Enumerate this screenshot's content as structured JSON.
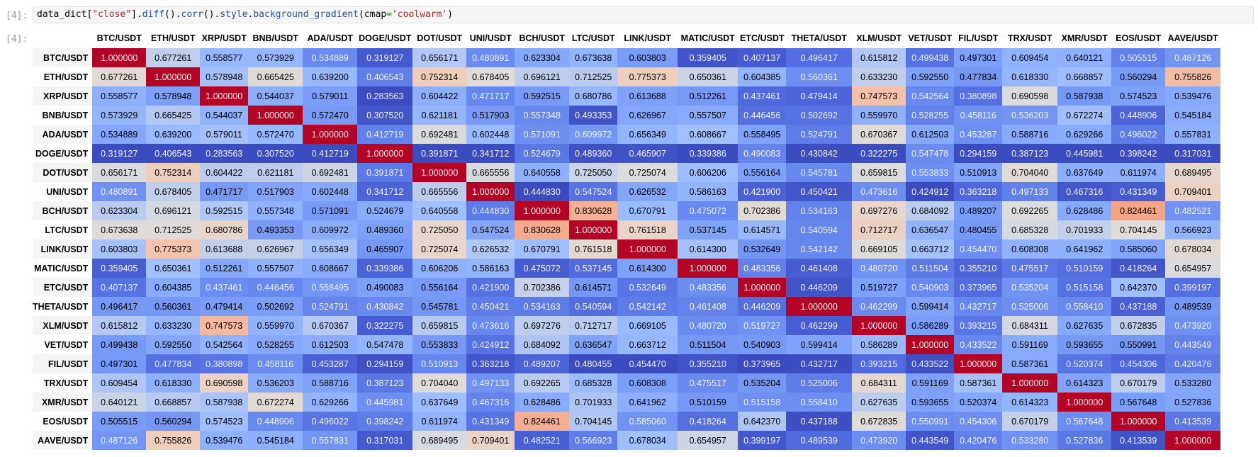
{
  "cell": {
    "in_prompt": "[4]:",
    "out_prompt": "[4]:",
    "code": {
      "t1": "data_dict[",
      "t2": "\"close\"",
      "t3": "].",
      "t4": "diff",
      "t5": "().",
      "t6": "corr",
      "t7": "().",
      "t8": "style",
      "t9": ".",
      "t10": "background_gradient",
      "t11": "(cmap",
      "t12": "=",
      "t13": "'coolwarm'",
      "t14": ")"
    }
  },
  "colormap": "coolwarm",
  "colors": {
    "low": "#3b4cc0",
    "mid": "#dddddd",
    "high": "#b40426"
  },
  "columns": [
    "BTC/USDT",
    "ETH/USDT",
    "XRP/USDT",
    "BNB/USDT",
    "ADA/USDT",
    "DOGE/USDT",
    "DOT/USDT",
    "UNI/USDT",
    "BCH/USDT",
    "LTC/USDT",
    "LINK/USDT",
    "MATIC/USDT",
    "ETC/USDT",
    "THETA/USDT",
    "XLM/USDT",
    "VET/USDT",
    "FIL/USDT",
    "TRX/USDT",
    "XMR/USDT",
    "EOS/USDT",
    "AAVE/USDT"
  ],
  "rows": [
    {
      "label": "BTC/USDT",
      "values": [
        "1.000000",
        "0.677261",
        "0.558577",
        "0.573929",
        "0.534889",
        "0.319127",
        "0.656171",
        "0.480891",
        "0.623304",
        "0.673638",
        "0.603803",
        "0.359405",
        "0.407137",
        "0.496417",
        "0.615812",
        "0.499438",
        "0.497301",
        "0.609454",
        "0.640121",
        "0.505515",
        "0.487126"
      ]
    },
    {
      "label": "ETH/USDT",
      "values": [
        "0.677261",
        "1.000000",
        "0.578948",
        "0.665425",
        "0.639200",
        "0.406543",
        "0.752314",
        "0.678405",
        "0.696121",
        "0.712525",
        "0.775373",
        "0.650361",
        "0.604385",
        "0.560361",
        "0.633230",
        "0.592550",
        "0.477834",
        "0.618330",
        "0.668857",
        "0.560294",
        "0.755826"
      ]
    },
    {
      "label": "XRP/USDT",
      "values": [
        "0.558577",
        "0.578948",
        "1.000000",
        "0.544037",
        "0.579011",
        "0.283563",
        "0.604422",
        "0.471717",
        "0.592515",
        "0.680786",
        "0.613688",
        "0.512261",
        "0.437461",
        "0.479414",
        "0.747573",
        "0.542564",
        "0.380898",
        "0.690598",
        "0.587938",
        "0.574523",
        "0.539476"
      ]
    },
    {
      "label": "BNB/USDT",
      "values": [
        "0.573929",
        "0.665425",
        "0.544037",
        "1.000000",
        "0.572470",
        "0.307520",
        "0.621181",
        "0.517903",
        "0.557348",
        "0.493353",
        "0.626967",
        "0.557507",
        "0.446456",
        "0.502692",
        "0.559970",
        "0.528255",
        "0.458116",
        "0.536203",
        "0.672274",
        "0.448906",
        "0.545184"
      ]
    },
    {
      "label": "ADA/USDT",
      "values": [
        "0.534889",
        "0.639200",
        "0.579011",
        "0.572470",
        "1.000000",
        "0.412719",
        "0.692481",
        "0.602448",
        "0.571091",
        "0.609972",
        "0.656349",
        "0.608667",
        "0.558495",
        "0.524791",
        "0.670367",
        "0.612503",
        "0.453287",
        "0.588716",
        "0.629266",
        "0.496022",
        "0.557831"
      ]
    },
    {
      "label": "DOGE/USDT",
      "values": [
        "0.319127",
        "0.406543",
        "0.283563",
        "0.307520",
        "0.412719",
        "1.000000",
        "0.391871",
        "0.341712",
        "0.524679",
        "0.489360",
        "0.465907",
        "0.339386",
        "0.490083",
        "0.430842",
        "0.322275",
        "0.547478",
        "0.294159",
        "0.387123",
        "0.445981",
        "0.398242",
        "0.317031"
      ]
    },
    {
      "label": "DOT/USDT",
      "values": [
        "0.656171",
        "0.752314",
        "0.604422",
        "0.621181",
        "0.692481",
        "0.391871",
        "1.000000",
        "0.665556",
        "0.640558",
        "0.725050",
        "0.725074",
        "0.606206",
        "0.556164",
        "0.545781",
        "0.659815",
        "0.553833",
        "0.510913",
        "0.704040",
        "0.637649",
        "0.611974",
        "0.689495"
      ]
    },
    {
      "label": "UNI/USDT",
      "values": [
        "0.480891",
        "0.678405",
        "0.471717",
        "0.517903",
        "0.602448",
        "0.341712",
        "0.665556",
        "1.000000",
        "0.444830",
        "0.547524",
        "0.626532",
        "0.586163",
        "0.421900",
        "0.450421",
        "0.473616",
        "0.424912",
        "0.363218",
        "0.497133",
        "0.467316",
        "0.431349",
        "0.709401"
      ]
    },
    {
      "label": "BCH/USDT",
      "values": [
        "0.623304",
        "0.696121",
        "0.592515",
        "0.557348",
        "0.571091",
        "0.524679",
        "0.640558",
        "0.444830",
        "1.000000",
        "0.830628",
        "0.670791",
        "0.475072",
        "0.702386",
        "0.534163",
        "0.697276",
        "0.684092",
        "0.489207",
        "0.692265",
        "0.628486",
        "0.824461",
        "0.482521"
      ]
    },
    {
      "label": "LTC/USDT",
      "values": [
        "0.673638",
        "0.712525",
        "0.680786",
        "0.493353",
        "0.609972",
        "0.489360",
        "0.725050",
        "0.547524",
        "0.830628",
        "1.000000",
        "0.761518",
        "0.537145",
        "0.614571",
        "0.540594",
        "0.712717",
        "0.636547",
        "0.480455",
        "0.685328",
        "0.701933",
        "0.704145",
        "0.566923"
      ]
    },
    {
      "label": "LINK/USDT",
      "values": [
        "0.603803",
        "0.775373",
        "0.613688",
        "0.626967",
        "0.656349",
        "0.465907",
        "0.725074",
        "0.626532",
        "0.670791",
        "0.761518",
        "1.000000",
        "0.614300",
        "0.532649",
        "0.542142",
        "0.669105",
        "0.663712",
        "0.454470",
        "0.608308",
        "0.641962",
        "0.585060",
        "0.678034"
      ]
    },
    {
      "label": "MATIC/USDT",
      "values": [
        "0.359405",
        "0.650361",
        "0.512261",
        "0.557507",
        "0.608667",
        "0.339386",
        "0.606206",
        "0.586163",
        "0.475072",
        "0.537145",
        "0.614300",
        "1.000000",
        "0.483356",
        "0.461408",
        "0.480720",
        "0.511504",
        "0.355210",
        "0.475517",
        "0.510159",
        "0.418264",
        "0.654957"
      ]
    },
    {
      "label": "ETC/USDT",
      "values": [
        "0.407137",
        "0.604385",
        "0.437461",
        "0.446456",
        "0.558495",
        "0.490083",
        "0.556164",
        "0.421900",
        "0.702386",
        "0.614571",
        "0.532649",
        "0.483356",
        "1.000000",
        "0.446209",
        "0.519727",
        "0.540903",
        "0.373965",
        "0.535204",
        "0.515158",
        "0.642370",
        "0.399197"
      ]
    },
    {
      "label": "THETA/USDT",
      "values": [
        "0.496417",
        "0.560361",
        "0.479414",
        "0.502692",
        "0.524791",
        "0.430842",
        "0.545781",
        "0.450421",
        "0.534163",
        "0.540594",
        "0.542142",
        "0.461408",
        "0.446209",
        "1.000000",
        "0.462299",
        "0.599414",
        "0.432717",
        "0.525006",
        "0.558410",
        "0.437188",
        "0.489539"
      ]
    },
    {
      "label": "XLM/USDT",
      "values": [
        "0.615812",
        "0.633230",
        "0.747573",
        "0.559970",
        "0.670367",
        "0.322275",
        "0.659815",
        "0.473616",
        "0.697276",
        "0.712717",
        "0.669105",
        "0.480720",
        "0.519727",
        "0.462299",
        "1.000000",
        "0.586289",
        "0.393215",
        "0.684311",
        "0.627635",
        "0.672835",
        "0.473920"
      ]
    },
    {
      "label": "VET/USDT",
      "values": [
        "0.499438",
        "0.592550",
        "0.542564",
        "0.528255",
        "0.612503",
        "0.547478",
        "0.553833",
        "0.424912",
        "0.684092",
        "0.636547",
        "0.663712",
        "0.511504",
        "0.540903",
        "0.599414",
        "0.586289",
        "1.000000",
        "0.433522",
        "0.591169",
        "0.593655",
        "0.550991",
        "0.443549"
      ]
    },
    {
      "label": "FIL/USDT",
      "values": [
        "0.497301",
        "0.477834",
        "0.380898",
        "0.458116",
        "0.453287",
        "0.294159",
        "0.510913",
        "0.363218",
        "0.489207",
        "0.480455",
        "0.454470",
        "0.355210",
        "0.373965",
        "0.432717",
        "0.393215",
        "0.433522",
        "1.000000",
        "0.587361",
        "0.520374",
        "0.454306",
        "0.420476"
      ]
    },
    {
      "label": "TRX/USDT",
      "values": [
        "0.609454",
        "0.618330",
        "0.690598",
        "0.536203",
        "0.588716",
        "0.387123",
        "0.704040",
        "0.497133",
        "0.692265",
        "0.685328",
        "0.608308",
        "0.475517",
        "0.535204",
        "0.525006",
        "0.684311",
        "0.591169",
        "0.587361",
        "1.000000",
        "0.614323",
        "0.670179",
        "0.533280"
      ]
    },
    {
      "label": "XMR/USDT",
      "values": [
        "0.640121",
        "0.668857",
        "0.587938",
        "0.672274",
        "0.629266",
        "0.445981",
        "0.637649",
        "0.467316",
        "0.628486",
        "0.701933",
        "0.641962",
        "0.510159",
        "0.515158",
        "0.558410",
        "0.627635",
        "0.593655",
        "0.520374",
        "0.614323",
        "1.000000",
        "0.567648",
        "0.527836"
      ]
    },
    {
      "label": "EOS/USDT",
      "values": [
        "0.505515",
        "0.560294",
        "0.574523",
        "0.448906",
        "0.496022",
        "0.398242",
        "0.611974",
        "0.431349",
        "0.824461",
        "0.704145",
        "0.585060",
        "0.418264",
        "0.642370",
        "0.437188",
        "0.672835",
        "0.550991",
        "0.454306",
        "0.670179",
        "0.567648",
        "1.000000",
        "0.413539"
      ]
    },
    {
      "label": "AAVE/USDT",
      "values": [
        "0.487126",
        "0.755826",
        "0.539476",
        "0.545184",
        "0.557831",
        "0.317031",
        "0.689495",
        "0.709401",
        "0.482521",
        "0.566923",
        "0.678034",
        "0.654957",
        "0.399197",
        "0.489539",
        "0.473920",
        "0.443549",
        "0.420476",
        "0.533280",
        "0.527836",
        "0.413539",
        "1.000000"
      ]
    }
  ]
}
